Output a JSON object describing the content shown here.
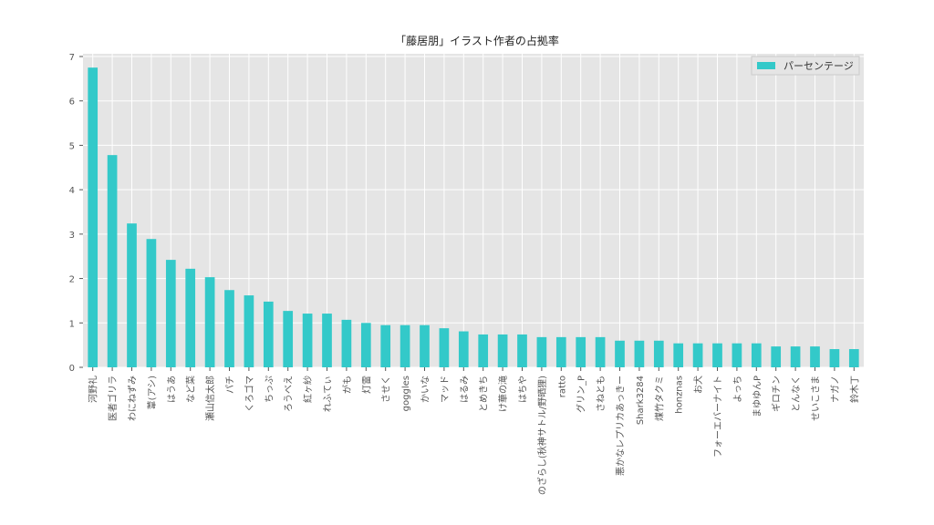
{
  "chart_data": {
    "type": "bar",
    "title": "「藤居朋」イラスト作者の占拠率",
    "xlabel": "",
    "ylabel": "",
    "ylim": [
      0,
      7
    ],
    "yticks": [
      0,
      1,
      2,
      3,
      4,
      5,
      6,
      7
    ],
    "grid": true,
    "legend_position": "top-right",
    "categories": [
      "河野礼",
      "医者ゴリラ",
      "わにねずみ",
      "葦(アシ)",
      "はうあ",
      "など菜",
      "瀬山信太郎",
      "パチ",
      "くろゴマ",
      "ちっぷ",
      "ろうべえ",
      "紅ヶ紗",
      "れふてぃ",
      "がも",
      "灯雷",
      "させく",
      "goggles",
      "かいな",
      "マッド",
      "はるみ",
      "とめきち",
      "け華の滝",
      "はちや",
      "のざらし(秋神サトル/野晒狸)",
      "ratto",
      "グリン_P",
      "さねとも",
      "悪かなレプリカあっきー",
      "Shark3284",
      "煤竹タクミ",
      "honznas",
      "お犬",
      "フォーエバーナイト",
      "よっち",
      "まゆゆんP",
      "ギロチン",
      "とんなく",
      "せいこさま",
      "ナガノ",
      "鈴木丁"
    ],
    "series": [
      {
        "name": "パーセンテージ",
        "color": "#33c9c9",
        "values": [
          6.75,
          4.78,
          3.24,
          2.89,
          2.42,
          2.22,
          2.03,
          1.74,
          1.62,
          1.48,
          1.27,
          1.21,
          1.21,
          1.07,
          1.0,
          0.95,
          0.95,
          0.95,
          0.88,
          0.81,
          0.74,
          0.74,
          0.74,
          0.68,
          0.68,
          0.68,
          0.68,
          0.6,
          0.6,
          0.6,
          0.54,
          0.54,
          0.54,
          0.54,
          0.54,
          0.47,
          0.47,
          0.47,
          0.41,
          0.41
        ]
      }
    ]
  },
  "colors": {
    "plot_background": "#e5e5e5",
    "grid": "#ffffff",
    "bar": "#33c9c9"
  }
}
